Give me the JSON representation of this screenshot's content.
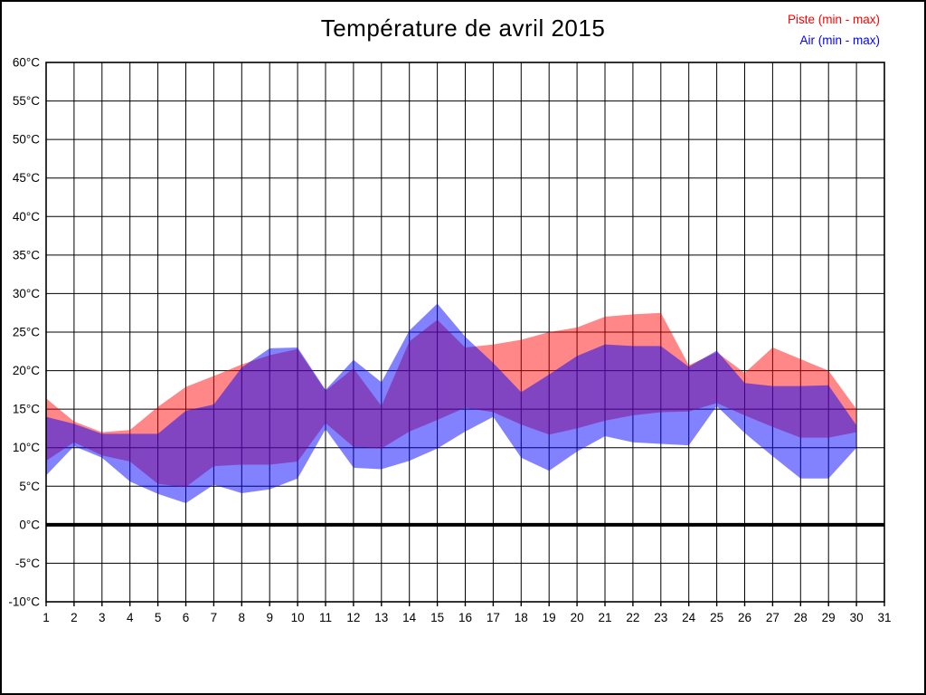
{
  "title": "Température de avril 2015",
  "legend": {
    "items": [
      {
        "label": "Piste (min - max)",
        "color": "#ff0000"
      },
      {
        "label": "Air (min - max)",
        "color": "#0000ff"
      }
    ]
  },
  "chart_data": {
    "type": "area",
    "title": "Température de avril 2015",
    "xlabel": "",
    "ylabel": "",
    "xlim": [
      1,
      31
    ],
    "xtick_step": 1,
    "ylim": [
      -10,
      60
    ],
    "ytick_step": 5,
    "ytick_suffix": "°C",
    "grid": true,
    "zero_line_at": 0,
    "legend_position": "top-right",
    "x": [
      1,
      2,
      3,
      4,
      5,
      6,
      7,
      8,
      9,
      10,
      11,
      12,
      13,
      14,
      15,
      16,
      17,
      18,
      19,
      20,
      21,
      22,
      23,
      24,
      25,
      26,
      27,
      28,
      29,
      30
    ],
    "series": [
      {
        "name": "Piste (min - max)",
        "kind": "band",
        "fill": "#ff0000",
        "fill_opacity": 0.47,
        "min": [
          8.3,
          10.7,
          9.0,
          8.2,
          5.3,
          4.9,
          7.6,
          7.8,
          7.8,
          8.2,
          13.2,
          10.1,
          9.9,
          12.1,
          13.6,
          15.2,
          14.6,
          13.0,
          11.7,
          12.5,
          13.5,
          14.2,
          14.6,
          14.7,
          15.8,
          14.2,
          12.7,
          11.3,
          11.3,
          12.0
        ],
        "max": [
          16.4,
          13.4,
          12.0,
          12.3,
          15.3,
          17.9,
          19.3,
          20.8,
          22.0,
          22.8,
          17.4,
          20.3,
          15.4,
          23.8,
          26.6,
          23.0,
          23.4,
          24.0,
          25.0,
          25.6,
          27.0,
          27.3,
          27.5,
          20.7,
          22.4,
          19.7,
          23.0,
          21.5,
          20.0,
          15.0
        ]
      },
      {
        "name": "Air (min - max)",
        "kind": "band",
        "fill": "#0000ff",
        "fill_opacity": 0.49,
        "min": [
          6.4,
          10.2,
          8.7,
          5.6,
          4.0,
          2.8,
          5.2,
          4.1,
          4.6,
          6.0,
          12.4,
          7.4,
          7.2,
          8.3,
          9.9,
          12.1,
          14.0,
          8.7,
          7.0,
          9.5,
          11.5,
          10.7,
          10.5,
          10.3,
          15.4,
          11.9,
          8.9,
          6.0,
          6.0,
          10.0
        ],
        "max": [
          14.0,
          13.1,
          11.8,
          11.8,
          11.8,
          14.8,
          15.6,
          20.4,
          22.9,
          23.0,
          17.5,
          21.4,
          18.5,
          25.2,
          28.7,
          24.4,
          21.0,
          17.2,
          19.5,
          21.9,
          23.4,
          23.2,
          23.2,
          20.5,
          22.6,
          18.4,
          18.0,
          18.0,
          18.1,
          12.9
        ]
      }
    ],
    "grid_color": "#000000",
    "axis_color": "#000000",
    "label_color": "#000000"
  }
}
